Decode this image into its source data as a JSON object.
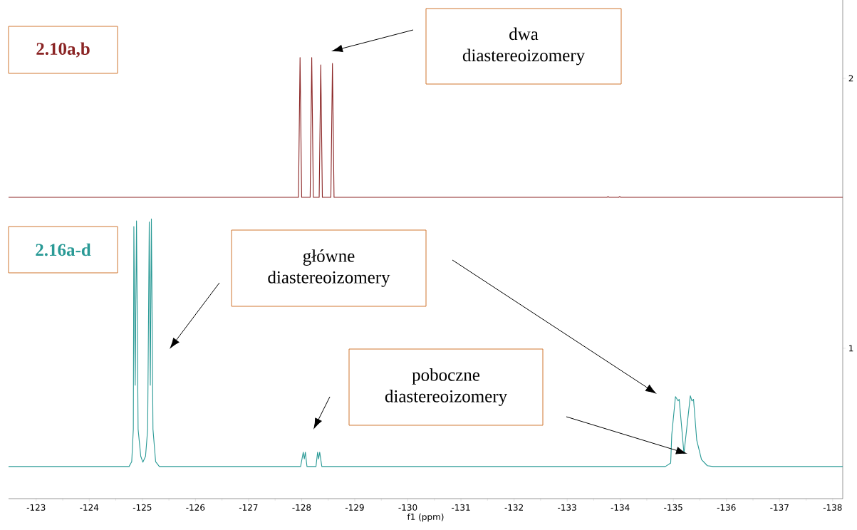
{
  "chart_data": {
    "type": "line",
    "xlabel": "f1 (ppm)",
    "xlim": [
      -122.48,
      -138.19
    ],
    "xticks": [
      -123,
      -124,
      -125,
      -126,
      -127,
      -128,
      -129,
      -130,
      -131,
      -132,
      -133,
      -134,
      -135,
      -136,
      -137,
      -138
    ],
    "ylim": [
      0.443,
      2.29
    ],
    "yticks": [
      1,
      2
    ],
    "series": [
      {
        "name": "2.10a,b",
        "color": "#8b2525",
        "x": [
          -122.48,
          -127.94,
          -127.97,
          -128.0,
          -128.16,
          -128.19,
          -128.22,
          -128.33,
          -128.36,
          -128.39,
          -128.55,
          -128.58,
          -128.61,
          -133.75,
          -133.77,
          -133.79,
          -133.97,
          -133.99,
          -134.01,
          -138.19
        ],
        "values": [
          1.559,
          1.559,
          2.077,
          1.559,
          1.559,
          2.077,
          1.559,
          1.559,
          2.05,
          1.559,
          1.559,
          2.055,
          1.559,
          1.559,
          1.562,
          1.559,
          1.559,
          1.562,
          1.559,
          1.559
        ]
      },
      {
        "name": "2.16a-d",
        "color": "#2a9a96",
        "x": [
          -122.48,
          -124.75,
          -124.8,
          -124.83,
          -124.84,
          -124.865,
          -124.89,
          -124.92,
          -124.97,
          -125.01,
          -125.06,
          -125.1,
          -125.13,
          -125.15,
          -125.17,
          -125.2,
          -125.25,
          -125.32,
          -127.98,
          -128.03,
          -128.05,
          -128.07,
          -128.1,
          -128.27,
          -128.3,
          -128.32,
          -128.34,
          -128.38,
          -134.85,
          -134.95,
          -134.97,
          -135.04,
          -135.09,
          -135.11,
          -135.16,
          -135.2,
          -135.25,
          -135.32,
          -135.35,
          -135.38,
          -135.44,
          -135.53,
          -135.64,
          -135.75,
          -138.19
        ],
        "values": [
          0.562,
          0.562,
          0.58,
          0.7,
          1.451,
          0.863,
          1.472,
          0.7,
          0.6,
          0.578,
          0.6,
          0.7,
          1.468,
          0.863,
          1.479,
          0.7,
          0.58,
          0.562,
          0.562,
          0.615,
          0.59,
          0.615,
          0.562,
          0.562,
          0.615,
          0.59,
          0.615,
          0.562,
          0.562,
          0.575,
          0.68,
          0.821,
          0.805,
          0.811,
          0.7,
          0.61,
          0.7,
          0.824,
          0.805,
          0.811,
          0.66,
          0.588,
          0.565,
          0.562,
          0.562
        ]
      }
    ],
    "annotations": [
      "dwa diastereoizomery",
      "główne diastereoizomery",
      "poboczne diastereoizomery"
    ]
  }
}
